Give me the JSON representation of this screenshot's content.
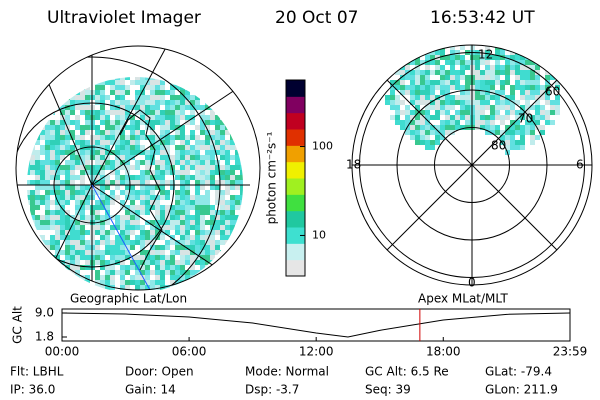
{
  "header": {
    "title": "Ultraviolet Imager",
    "date": "20 Oct 07",
    "time": "16:53:42 UT"
  },
  "left_map": {
    "label": "Geographic Lat/Lon"
  },
  "right_map": {
    "label": "Apex MLat/MLT",
    "mlt_labels": [
      "12",
      "18",
      "6",
      "0"
    ],
    "lat_rings": [
      80,
      70,
      60
    ]
  },
  "colorbar": {
    "label": "photon cm⁻²s⁻¹",
    "log": true,
    "clim": [
      3.5,
      560
    ],
    "ticks": [
      10,
      100
    ],
    "colors": [
      "#e6e6e6",
      "#c8f0f0",
      "#3ee0d0",
      "#20c8a0",
      "#40e040",
      "#a0f020",
      "#f0f000",
      "#f0a000",
      "#e03000",
      "#c00020",
      "#800060",
      "#000030"
    ]
  },
  "altitude": {
    "ylabel": "GC Alt",
    "ylim": [
      1.8,
      9.0
    ],
    "yticks": [
      {
        "value": 9.0,
        "label": "9.0"
      },
      1.8
    ],
    "xlim": [
      0,
      23.983
    ],
    "xticks": [
      {
        "value": 0,
        "label": "00:00"
      },
      {
        "value": 6,
        "label": "06:00"
      },
      {
        "value": 12,
        "label": "12:00"
      },
      {
        "value": 18,
        "label": "18:00"
      },
      {
        "value": 23.983,
        "label": "23:59"
      }
    ],
    "x": [
      0,
      3,
      6,
      9,
      12,
      13.5,
      15,
      18,
      21,
      23.983
    ],
    "values": [
      9.0,
      8.7,
      7.8,
      6.0,
      3.0,
      1.8,
      3.8,
      6.9,
      8.6,
      9.0
    ],
    "marker_x": 16.895,
    "color": "#000000",
    "marker_color": "#d00000"
  },
  "footer": {
    "columns": [
      [
        "Flt: LBHL",
        "IP: 36.0"
      ],
      [
        "Door: Open",
        "Gain: 14"
      ],
      [
        "Mode: Normal",
        "Dsp: -3.7"
      ],
      [
        "GC Alt: 6.5 Re",
        "Seq: 39"
      ],
      [
        "GLat: -79.4",
        "GLon: 211.9"
      ]
    ]
  }
}
